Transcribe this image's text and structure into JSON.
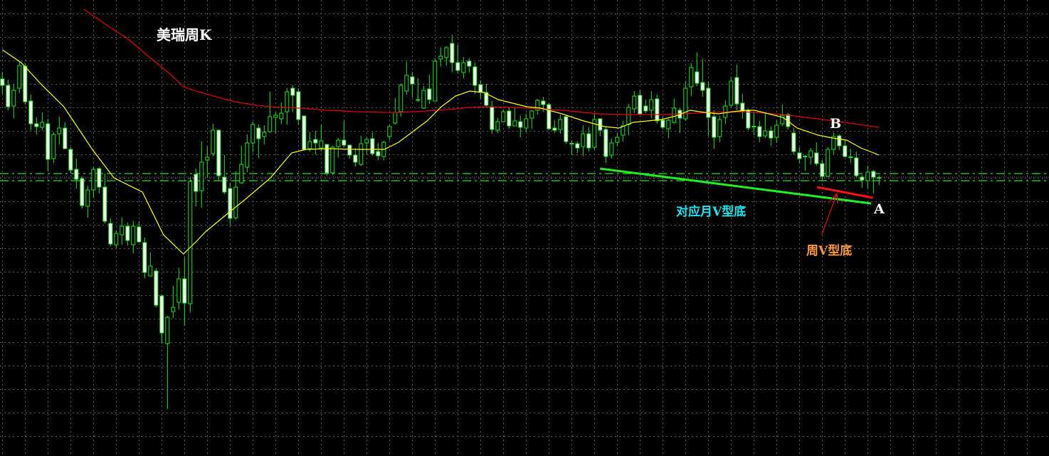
{
  "chart_data": {
    "type": "candlestick",
    "title": "美瑞周K",
    "xlabel": "",
    "ylabel": "",
    "grid": true,
    "colors": {
      "background": "#000000",
      "candle_outline": "#1ee31e",
      "down_body": "#ffffff",
      "up_body": "#000000",
      "ma_short": "#ffff00",
      "ma_long": "#e00000",
      "grid": "#5a5a5a",
      "level": "#1ee31e",
      "month_v_line": "#22ee22",
      "week_v_line": "#ff1010",
      "arrow": "#dd1010"
    },
    "ylim": [
      0,
      64.1
    ],
    "xlim": [
      0,
      184
    ],
    "candles_ohlc": [
      [
        53.0,
        54.0,
        50.9,
        52.1
      ],
      [
        52.1,
        52.9,
        48.6,
        49.1
      ],
      [
        49.2,
        52.3,
        47.5,
        51.4
      ],
      [
        51.7,
        55.4,
        51.0,
        54.9
      ],
      [
        54.8,
        55.2,
        49.4,
        49.8
      ],
      [
        49.9,
        50.8,
        45.8,
        46.7
      ],
      [
        46.7,
        47.6,
        45.2,
        46.3
      ],
      [
        46.2,
        48.3,
        45.8,
        46.9
      ],
      [
        46.7,
        47.4,
        40.1,
        41.7
      ],
      [
        41.8,
        45.5,
        41.2,
        45.2
      ],
      [
        45.3,
        47.7,
        43.8,
        46.1
      ],
      [
        46.1,
        46.9,
        43.2,
        43.2
      ],
      [
        43.1,
        43.4,
        39.7,
        40.2
      ],
      [
        40.3,
        41.8,
        37.6,
        38.9
      ],
      [
        39.0,
        39.3,
        34.8,
        35.2
      ],
      [
        35.1,
        38.0,
        33.5,
        37.4
      ],
      [
        37.4,
        40.6,
        36.3,
        40.3
      ],
      [
        40.4,
        40.6,
        36.9,
        37.8
      ],
      [
        37.8,
        39.7,
        32.7,
        33.0
      ],
      [
        32.7,
        33.4,
        29.5,
        29.8
      ],
      [
        29.7,
        31.7,
        29.3,
        31.3
      ],
      [
        31.1,
        33.5,
        29.7,
        32.3
      ],
      [
        32.3,
        32.8,
        29.6,
        30.3
      ],
      [
        29.7,
        33.0,
        28.5,
        32.3
      ],
      [
        32.2,
        33.0,
        30.0,
        30.1
      ],
      [
        30.0,
        30.7,
        25.0,
        25.8
      ],
      [
        25.3,
        28.6,
        25.3,
        26.7
      ],
      [
        26.0,
        26.4,
        20.9,
        21.2
      ],
      [
        22.5,
        22.7,
        15.8,
        17.3
      ],
      [
        15.8,
        19.7,
        6.6,
        19.5
      ],
      [
        20.3,
        23.9,
        19.4,
        20.9
      ],
      [
        21.6,
        26.4,
        20.6,
        24.9
      ],
      [
        24.9,
        27.9,
        18.3,
        21.5
      ],
      [
        21.4,
        39.2,
        20.2,
        38.6
      ],
      [
        39.6,
        40.4,
        35.1,
        37.2
      ],
      [
        37.3,
        44.2,
        34.9,
        41.3
      ],
      [
        41.6,
        43.5,
        39.1,
        42.0
      ],
      [
        42.5,
        46.7,
        42.1,
        45.8
      ],
      [
        45.8,
        45.9,
        38.8,
        39.4
      ],
      [
        39.2,
        42.3,
        36.8,
        37.1
      ],
      [
        37.6,
        38.4,
        32.4,
        33.4
      ],
      [
        33.5,
        40.0,
        33.2,
        37.8
      ],
      [
        38.4,
        43.6,
        38.3,
        41.0
      ],
      [
        40.6,
        45.2,
        39.9,
        44.0
      ],
      [
        44.0,
        47.0,
        42.7,
        46.6
      ],
      [
        46.1,
        46.6,
        41.9,
        44.6
      ],
      [
        44.9,
        46.5,
        43.8,
        45.5
      ],
      [
        45.6,
        51.2,
        45.4,
        47.7
      ],
      [
        47.6,
        48.3,
        45.3,
        47.9
      ],
      [
        47.4,
        49.7,
        46.7,
        48.2
      ],
      [
        48.4,
        51.7,
        46.6,
        51.2
      ],
      [
        51.7,
        52.1,
        48.4,
        50.7
      ],
      [
        51.2,
        51.7,
        46.6,
        47.3
      ],
      [
        47.8,
        47.8,
        42.9,
        43.1
      ],
      [
        43.2,
        45.5,
        42.8,
        44.2
      ],
      [
        44.5,
        45.7,
        42.4,
        44.0
      ],
      [
        43.3,
        46.5,
        42.8,
        44.3
      ],
      [
        43.8,
        43.8,
        39.4,
        39.8
      ],
      [
        39.8,
        43.6,
        39.5,
        43.4
      ],
      [
        43.5,
        44.7,
        42.0,
        44.4
      ],
      [
        44.4,
        47.1,
        43.4,
        43.7
      ],
      [
        43.7,
        43.7,
        41.8,
        42.3
      ],
      [
        42.3,
        43.3,
        40.7,
        41.3
      ],
      [
        41.0,
        45.0,
        40.8,
        43.9
      ],
      [
        44.0,
        44.8,
        42.4,
        44.5
      ],
      [
        44.6,
        45.5,
        42.2,
        42.5
      ],
      [
        42.8,
        44.0,
        41.6,
        42.2
      ],
      [
        42.1,
        44.3,
        41.6,
        44.1
      ],
      [
        44.9,
        46.6,
        44.4,
        46.3
      ],
      [
        46.8,
        50.3,
        46.6,
        48.3
      ],
      [
        48.4,
        52.4,
        47.7,
        52.1
      ],
      [
        51.3,
        55.4,
        50.8,
        53.5
      ],
      [
        53.3,
        54.0,
        50.4,
        52.3
      ],
      [
        50.1,
        53.1,
        49.8,
        50.0
      ],
      [
        48.9,
        52.0,
        48.8,
        51.4
      ],
      [
        51.6,
        53.6,
        49.5,
        50.1
      ],
      [
        49.9,
        55.9,
        49.9,
        55.5
      ],
      [
        55.8,
        57.4,
        54.8,
        56.2
      ],
      [
        56.0,
        57.6,
        54.9,
        57.4
      ],
      [
        58.0,
        59.2,
        54.0,
        55.3
      ],
      [
        55.3,
        57.8,
        53.8,
        54.2
      ],
      [
        53.9,
        56.1,
        53.1,
        55.3
      ],
      [
        55.5,
        55.9,
        53.9,
        54.8
      ],
      [
        54.7,
        55.3,
        50.9,
        52.1
      ],
      [
        52.2,
        52.8,
        50.2,
        51.1
      ],
      [
        51.1,
        52.3,
        49.0,
        49.3
      ],
      [
        49.1,
        49.9,
        45.3,
        45.9
      ],
      [
        45.8,
        47.5,
        45.4,
        47.0
      ],
      [
        47.0,
        48.7,
        46.9,
        48.4
      ],
      [
        48.5,
        49.1,
        46.0,
        46.4
      ],
      [
        46.4,
        49.0,
        46.4,
        47.1
      ],
      [
        47.0,
        47.8,
        44.8,
        46.2
      ],
      [
        46.1,
        48.1,
        45.5,
        47.4
      ],
      [
        47.5,
        48.6,
        46.0,
        48.5
      ],
      [
        48.6,
        50.2,
        48.0,
        50.0
      ],
      [
        49.9,
        50.5,
        48.4,
        49.4
      ],
      [
        49.4,
        49.6,
        45.8,
        46.0
      ],
      [
        46.1,
        47.2,
        45.4,
        45.8
      ],
      [
        45.9,
        48.0,
        45.3,
        47.3
      ],
      [
        47.7,
        47.9,
        43.9,
        44.2
      ],
      [
        43.9,
        44.4,
        42.3,
        43.9
      ],
      [
        43.9,
        44.2,
        42.6,
        43.3
      ],
      [
        43.5,
        46.5,
        42.2,
        45.3
      ],
      [
        45.3,
        46.2,
        42.8,
        43.3
      ],
      [
        43.4,
        48.1,
        43.0,
        47.3
      ],
      [
        47.4,
        47.4,
        45.0,
        45.8
      ],
      [
        45.9,
        46.3,
        41.2,
        42.1
      ],
      [
        42.3,
        44.6,
        41.8,
        44.0
      ],
      [
        44.1,
        45.4,
        43.6,
        44.8
      ],
      [
        45.1,
        47.1,
        44.2,
        46.4
      ],
      [
        46.6,
        49.5,
        45.1,
        49.0
      ],
      [
        48.8,
        51.3,
        48.2,
        50.6
      ],
      [
        50.7,
        51.5,
        48.0,
        48.1
      ],
      [
        49.2,
        50.1,
        48.2,
        48.5
      ],
      [
        48.6,
        51.3,
        47.5,
        50.1
      ],
      [
        50.2,
        50.8,
        46.7,
        47.1
      ],
      [
        47.2,
        47.7,
        46.0,
        46.2
      ],
      [
        46.0,
        47.4,
        44.7,
        47.2
      ],
      [
        46.9,
        50.2,
        46.7,
        48.9
      ],
      [
        48.6,
        48.9,
        45.4,
        47.5
      ],
      [
        47.4,
        52.7,
        47.1,
        51.7
      ],
      [
        51.9,
        55.2,
        50.6,
        54.6
      ],
      [
        54.0,
        56.7,
        52.0,
        52.4
      ],
      [
        52.5,
        55.8,
        50.5,
        51.4
      ],
      [
        51.7,
        52.6,
        45.0,
        47.6
      ],
      [
        47.7,
        48.6,
        43.2,
        44.8
      ],
      [
        44.9,
        47.8,
        44.1,
        47.3
      ],
      [
        47.6,
        50.0,
        46.7,
        49.2
      ],
      [
        49.3,
        53.3,
        49.0,
        52.7
      ],
      [
        53.2,
        55.0,
        48.6,
        49.5
      ],
      [
        49.6,
        50.9,
        47.4,
        48.5
      ],
      [
        48.6,
        48.8,
        45.8,
        46.1
      ],
      [
        46.3,
        48.3,
        45.1,
        46.3
      ],
      [
        46.3,
        47.1,
        44.1,
        44.9
      ],
      [
        45.0,
        48.3,
        44.7,
        45.7
      ],
      [
        45.7,
        46.3,
        43.6,
        44.7
      ],
      [
        44.8,
        47.1,
        44.0,
        46.5
      ],
      [
        46.7,
        49.4,
        46.4,
        47.9
      ],
      [
        48.0,
        48.2,
        45.9,
        46.3
      ],
      [
        45.4,
        46.1,
        42.4,
        42.8
      ],
      [
        42.6,
        43.4,
        41.2,
        41.8
      ],
      [
        42.1,
        42.3,
        40.1,
        42.1
      ],
      [
        42.0,
        43.3,
        41.0,
        42.9
      ],
      [
        42.6,
        44.1,
        40.8,
        41.1
      ],
      [
        41.1,
        41.6,
        38.7,
        39.3
      ],
      [
        39.3,
        43.4,
        39.3,
        43.1
      ],
      [
        43.1,
        45.5,
        42.4,
        44.9
      ],
      [
        45.0,
        45.2,
        43.0,
        43.6
      ],
      [
        43.6,
        44.4,
        42.0,
        42.1
      ],
      [
        42.0,
        43.2,
        41.2,
        42.0
      ],
      [
        41.9,
        42.8,
        39.1,
        39.4
      ],
      [
        39.2,
        39.5,
        37.7,
        38.8
      ],
      [
        38.7,
        40.8,
        37.6,
        39.9
      ],
      [
        40.0,
        40.2,
        36.9,
        39.2
      ],
      [
        39.1,
        39.4,
        38.1,
        39.1
      ]
    ],
    "ma_short": [
      [
        0,
        57.1
      ],
      [
        3.3,
        55.3
      ],
      [
        7,
        52.1
      ],
      [
        10.8,
        49.1
      ],
      [
        13.3,
        46.1
      ],
      [
        15.8,
        43.1
      ],
      [
        19.6,
        39.1
      ],
      [
        24.6,
        37.1
      ],
      [
        28.3,
        31.1
      ],
      [
        31.8,
        28.4
      ],
      [
        34,
        30.1
      ],
      [
        35.8,
        31.6
      ],
      [
        39.6,
        34.1
      ],
      [
        42.7,
        36.1
      ],
      [
        47.1,
        39.1
      ],
      [
        50.8,
        42.6
      ],
      [
        53.3,
        43.1
      ],
      [
        57.1,
        43.2
      ],
      [
        62.1,
        43.1
      ],
      [
        67.1,
        43.1
      ],
      [
        69.6,
        44.1
      ],
      [
        72.1,
        45.6
      ],
      [
        74.6,
        47.1
      ],
      [
        77.1,
        49.1
      ],
      [
        79.6,
        50.6
      ],
      [
        82.1,
        51.3
      ],
      [
        84.6,
        51.1
      ],
      [
        87.1,
        50.1
      ],
      [
        89.6,
        49.6
      ],
      [
        92.1,
        49.1
      ],
      [
        94.6,
        48.9
      ],
      [
        98.3,
        48.1
      ],
      [
        102.1,
        47.1
      ],
      [
        105.8,
        46.3
      ],
      [
        108.3,
        46.1
      ],
      [
        110.8,
        46.9
      ],
      [
        113.3,
        47.1
      ],
      [
        115.8,
        47.3
      ],
      [
        118.3,
        47.8
      ],
      [
        120.8,
        48.6
      ],
      [
        123.3,
        48.3
      ],
      [
        125.8,
        48.1
      ],
      [
        128.3,
        48.4
      ],
      [
        130.8,
        48.6
      ],
      [
        132.1,
        48.6
      ],
      [
        134.6,
        48.1
      ],
      [
        137.1,
        47.6
      ],
      [
        139.6,
        46.1
      ],
      [
        143.3,
        45.1
      ],
      [
        145.8,
        44.7
      ],
      [
        148.3,
        44.4
      ],
      [
        150.8,
        43.3
      ],
      [
        154,
        42.3
      ]
    ],
    "ma_long": [
      [
        14.3,
        62.8
      ],
      [
        18.3,
        60.6
      ],
      [
        22.1,
        58.6
      ],
      [
        25.8,
        56.1
      ],
      [
        29.6,
        53.6
      ],
      [
        31.8,
        51.9
      ],
      [
        34,
        51.3
      ],
      [
        37.1,
        50.6
      ],
      [
        40.8,
        49.8
      ],
      [
        44.6,
        49.3
      ],
      [
        47.1,
        49.1
      ],
      [
        52.1,
        48.9
      ],
      [
        57.1,
        48.6
      ],
      [
        62.1,
        48.4
      ],
      [
        67.1,
        48.3
      ],
      [
        69.6,
        48.3
      ],
      [
        74.6,
        48.5
      ],
      [
        79.6,
        48.8
      ],
      [
        82.1,
        49.0
      ],
      [
        84.6,
        49.1
      ],
      [
        89.6,
        49.0
      ],
      [
        94.6,
        48.8
      ],
      [
        99.6,
        48.5
      ],
      [
        104.6,
        48.1
      ],
      [
        109.6,
        48.0
      ],
      [
        114.6,
        48.0
      ],
      [
        119.6,
        48.1
      ],
      [
        124.6,
        48.3
      ],
      [
        129.6,
        48.4
      ],
      [
        132.1,
        48.3
      ],
      [
        137.1,
        48.0
      ],
      [
        142.1,
        47.5
      ],
      [
        147.1,
        47.0
      ],
      [
        152.1,
        46.4
      ],
      [
        154,
        46.2
      ]
    ],
    "levels": [
      39.7,
      38.7
    ],
    "annotations": {
      "month_v_line": [
        [
          105.0,
          40.4
        ],
        [
          152.6,
          35.5
        ]
      ],
      "week_v_line": [
        [
          143.1,
          37.8
        ],
        [
          152.9,
          36.3
        ]
      ],
      "arrow": [
        [
          143.9,
          31.1
        ],
        [
          146.6,
          36.9
        ]
      ],
      "month_v_label": "对应月V型底",
      "week_v_label": "周V型底",
      "point_a": "A",
      "point_b": "B"
    }
  }
}
